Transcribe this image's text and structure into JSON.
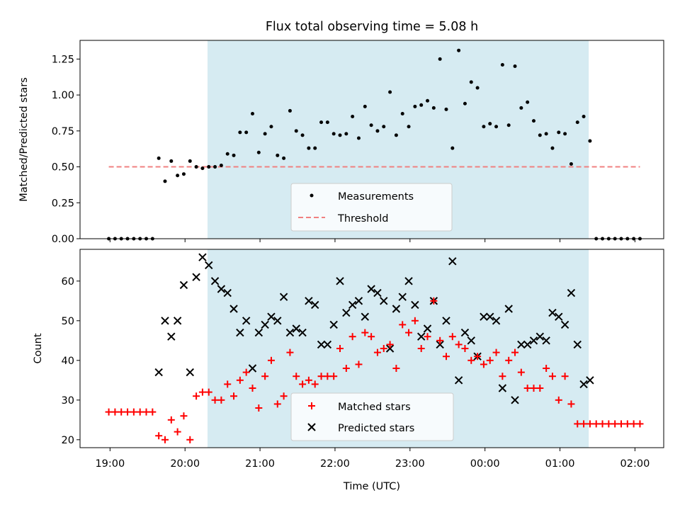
{
  "chart_data": [
    {
      "type": "scatter",
      "title": "Flux total observing time = 5.08 h",
      "ylabel": "Matched/Predicted stars",
      "xlabel": "",
      "ylim": [
        0,
        1.38
      ],
      "yticks": [
        0.0,
        0.25,
        0.5,
        0.75,
        1.0,
        1.25
      ],
      "ytick_labels": [
        "0.00",
        "0.25",
        "0.50",
        "0.75",
        "1.00",
        "1.25"
      ],
      "legend_position": "bottom-center",
      "shaded_interval": [
        "20:18",
        "01:23"
      ],
      "threshold": 0.5,
      "colors": {
        "measurements": "#000000",
        "threshold": "#f08080",
        "shade": "#add8e6"
      },
      "legend": [
        "Measurements",
        "Threshold"
      ],
      "series": [
        {
          "name": "Measurements",
          "x": [
            "18:59",
            "19:04",
            "19:09",
            "19:14",
            "19:19",
            "19:24",
            "19:29",
            "19:34",
            "19:39",
            "19:44",
            "19:49",
            "19:54",
            "19:59",
            "20:04",
            "20:09",
            "20:14",
            "20:19",
            "20:24",
            "20:29",
            "20:34",
            "20:39",
            "20:44",
            "20:49",
            "20:54",
            "20:59",
            "21:04",
            "21:09",
            "21:14",
            "21:19",
            "21:24",
            "21:29",
            "21:34",
            "21:39",
            "21:44",
            "21:49",
            "21:54",
            "21:59",
            "22:04",
            "22:09",
            "22:14",
            "22:19",
            "22:24",
            "22:29",
            "22:34",
            "22:39",
            "22:44",
            "22:49",
            "22:54",
            "22:59",
            "23:04",
            "23:09",
            "23:14",
            "23:19",
            "23:24",
            "23:29",
            "23:34",
            "23:39",
            "23:44",
            "23:49",
            "23:54",
            "23:59",
            "00:04",
            "00:09",
            "00:14",
            "00:19",
            "00:24",
            "00:29",
            "00:34",
            "00:39",
            "00:44",
            "00:49",
            "00:54",
            "00:59",
            "01:04",
            "01:09",
            "01:14",
            "01:19",
            "01:24",
            "01:29",
            "01:34",
            "01:39",
            "01:44",
            "01:49",
            "01:54",
            "01:59",
            "02:04"
          ],
          "y": [
            0.0,
            0.0,
            0.0,
            0.0,
            0.0,
            0.0,
            0.0,
            0.0,
            0.56,
            0.4,
            0.54,
            0.44,
            0.45,
            0.54,
            0.5,
            0.49,
            0.5,
            0.5,
            0.51,
            0.59,
            0.58,
            0.74,
            0.74,
            0.87,
            0.6,
            0.73,
            0.78,
            0.58,
            0.56,
            0.89,
            0.75,
            0.72,
            0.63,
            0.63,
            0.81,
            0.81,
            0.73,
            0.72,
            0.73,
            0.85,
            0.7,
            0.92,
            0.79,
            0.75,
            0.78,
            1.02,
            0.72,
            0.87,
            0.78,
            0.92,
            0.93,
            0.96,
            0.91,
            1.25,
            0.9,
            0.63,
            1.31,
            0.94,
            1.09,
            1.05,
            0.78,
            0.8,
            0.78,
            1.21,
            0.79,
            1.2,
            0.91,
            0.95,
            0.82,
            0.72,
            0.73,
            0.63,
            0.74,
            0.73,
            0.52,
            0.81,
            0.85,
            0.68,
            0.0,
            0.0,
            0.0,
            0.0,
            0.0,
            0.0,
            0.0,
            0.0
          ]
        },
        {
          "name": "Threshold",
          "x": [
            "18:59",
            "02:04"
          ],
          "y": [
            0.5,
            0.5
          ]
        }
      ]
    },
    {
      "type": "scatter",
      "title": "",
      "xlabel": "Time (UTC)",
      "ylabel": "Count",
      "ylim": [
        18,
        68
      ],
      "yticks": [
        20,
        30,
        40,
        50,
        60
      ],
      "ytick_labels": [
        "20",
        "30",
        "40",
        "50",
        "60"
      ],
      "xlim": [
        "18:36",
        "02:23"
      ],
      "xticks": [
        "19:00",
        "20:00",
        "21:00",
        "22:00",
        "23:00",
        "00:00",
        "01:00",
        "02:00"
      ],
      "legend_position": "bottom-center",
      "shaded_interval": [
        "20:18",
        "01:23"
      ],
      "colors": {
        "matched": "#ff0000",
        "predicted": "#000000",
        "shade": "#add8e6"
      },
      "legend": [
        "Matched stars",
        "Predicted stars"
      ],
      "series": [
        {
          "name": "Matched stars",
          "x": [
            "18:59",
            "19:04",
            "19:09",
            "19:14",
            "19:19",
            "19:24",
            "19:29",
            "19:34",
            "19:39",
            "19:44",
            "19:49",
            "19:54",
            "19:59",
            "20:04",
            "20:09",
            "20:14",
            "20:19",
            "20:24",
            "20:29",
            "20:34",
            "20:39",
            "20:44",
            "20:49",
            "20:54",
            "20:59",
            "21:04",
            "21:09",
            "21:14",
            "21:19",
            "21:24",
            "21:29",
            "21:34",
            "21:39",
            "21:44",
            "21:49",
            "21:54",
            "21:59",
            "22:04",
            "22:09",
            "22:14",
            "22:19",
            "22:24",
            "22:29",
            "22:34",
            "22:39",
            "22:44",
            "22:49",
            "22:54",
            "22:59",
            "23:04",
            "23:09",
            "23:14",
            "23:19",
            "23:24",
            "23:29",
            "23:34",
            "23:39",
            "23:44",
            "23:49",
            "23:54",
            "23:59",
            "00:04",
            "00:09",
            "00:14",
            "00:19",
            "00:24",
            "00:29",
            "00:34",
            "00:39",
            "00:44",
            "00:49",
            "00:54",
            "00:59",
            "01:04",
            "01:09",
            "01:14",
            "01:19",
            "01:24",
            "01:29",
            "01:34",
            "01:39",
            "01:44",
            "01:49",
            "01:54",
            "01:59",
            "02:04"
          ],
          "y": [
            27,
            27,
            27,
            27,
            27,
            27,
            27,
            27,
            21,
            20,
            25,
            22,
            26,
            20,
            31,
            32,
            32,
            30,
            30,
            34,
            31,
            35,
            37,
            33,
            28,
            36,
            40,
            29,
            31,
            42,
            36,
            34,
            35,
            34,
            36,
            36,
            36,
            43,
            38,
            46,
            39,
            47,
            46,
            42,
            43,
            44,
            38,
            49,
            47,
            50,
            43,
            46,
            55,
            45,
            41,
            46,
            44,
            43,
            40,
            41,
            39,
            40,
            42,
            36,
            40,
            42,
            37,
            33,
            33,
            33,
            38,
            36,
            30,
            36,
            29,
            24,
            24,
            24,
            24,
            24,
            24,
            24,
            24,
            24,
            24,
            24
          ]
        },
        {
          "name": "Predicted stars",
          "x": [
            "19:39",
            "19:44",
            "19:49",
            "19:54",
            "19:59",
            "20:04",
            "20:09",
            "20:14",
            "20:19",
            "20:24",
            "20:29",
            "20:34",
            "20:39",
            "20:44",
            "20:49",
            "20:54",
            "20:59",
            "21:04",
            "21:09",
            "21:14",
            "21:19",
            "21:24",
            "21:29",
            "21:34",
            "21:39",
            "21:44",
            "21:49",
            "21:54",
            "21:59",
            "22:04",
            "22:09",
            "22:14",
            "22:19",
            "22:24",
            "22:29",
            "22:34",
            "22:39",
            "22:44",
            "22:49",
            "22:54",
            "22:59",
            "23:04",
            "23:09",
            "23:14",
            "23:19",
            "23:24",
            "23:29",
            "23:34",
            "23:39",
            "23:44",
            "23:49",
            "23:54",
            "23:59",
            "00:04",
            "00:09",
            "00:14",
            "00:19",
            "00:24",
            "00:29",
            "00:34",
            "00:39",
            "00:44",
            "00:49",
            "00:54",
            "00:59",
            "01:04",
            "01:09",
            "01:14",
            "01:19",
            "01:24"
          ],
          "y": [
            37,
            50,
            46,
            50,
            59,
            37,
            61,
            66,
            64,
            60,
            58,
            57,
            53,
            47,
            50,
            38,
            47,
            49,
            51,
            50,
            56,
            47,
            48,
            47,
            55,
            54,
            44,
            44,
            49,
            60,
            52,
            54,
            55,
            51,
            58,
            57,
            55,
            43,
            53,
            56,
            60,
            54,
            46,
            48,
            55,
            44,
            50,
            65,
            35,
            47,
            45,
            41,
            51,
            51,
            50,
            33,
            53,
            30,
            44,
            44,
            45,
            46,
            45,
            52,
            51,
            49,
            57,
            44,
            34,
            35
          ]
        }
      ]
    }
  ]
}
